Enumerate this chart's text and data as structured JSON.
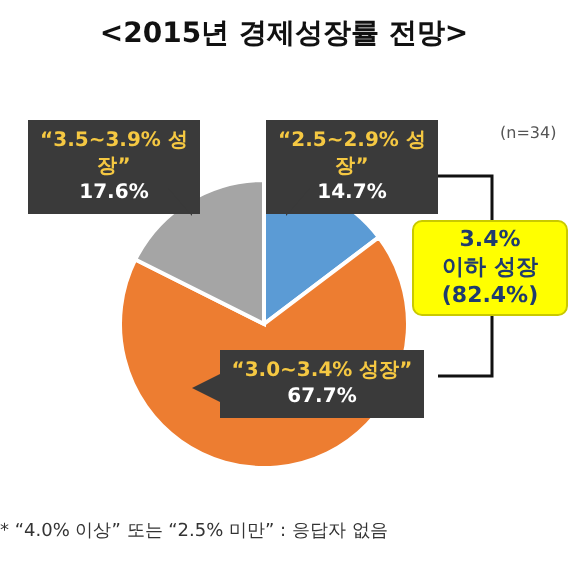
{
  "chart_data": {
    "type": "pie",
    "title": "<2015년 경제성장률 전망>",
    "categories": [
      "“2.5~2.9% 성장”",
      "“3.0~3.4% 성장”",
      "“3.5~3.9% 성장”"
    ],
    "values": [
      14.7,
      67.7,
      17.6
    ],
    "value_labels": [
      "14.7%",
      "67.7%",
      "17.6%"
    ],
    "colors": [
      "#5b9bd5",
      "#ed7d31",
      "#a5a5a5"
    ],
    "annotations": [
      "(n=34)",
      "3.4%\n이하 성장\n(82.4%)",
      "* “4.0% 이상” 또는 “2.5% 미만” : 응답자 없음"
    ]
  }
}
